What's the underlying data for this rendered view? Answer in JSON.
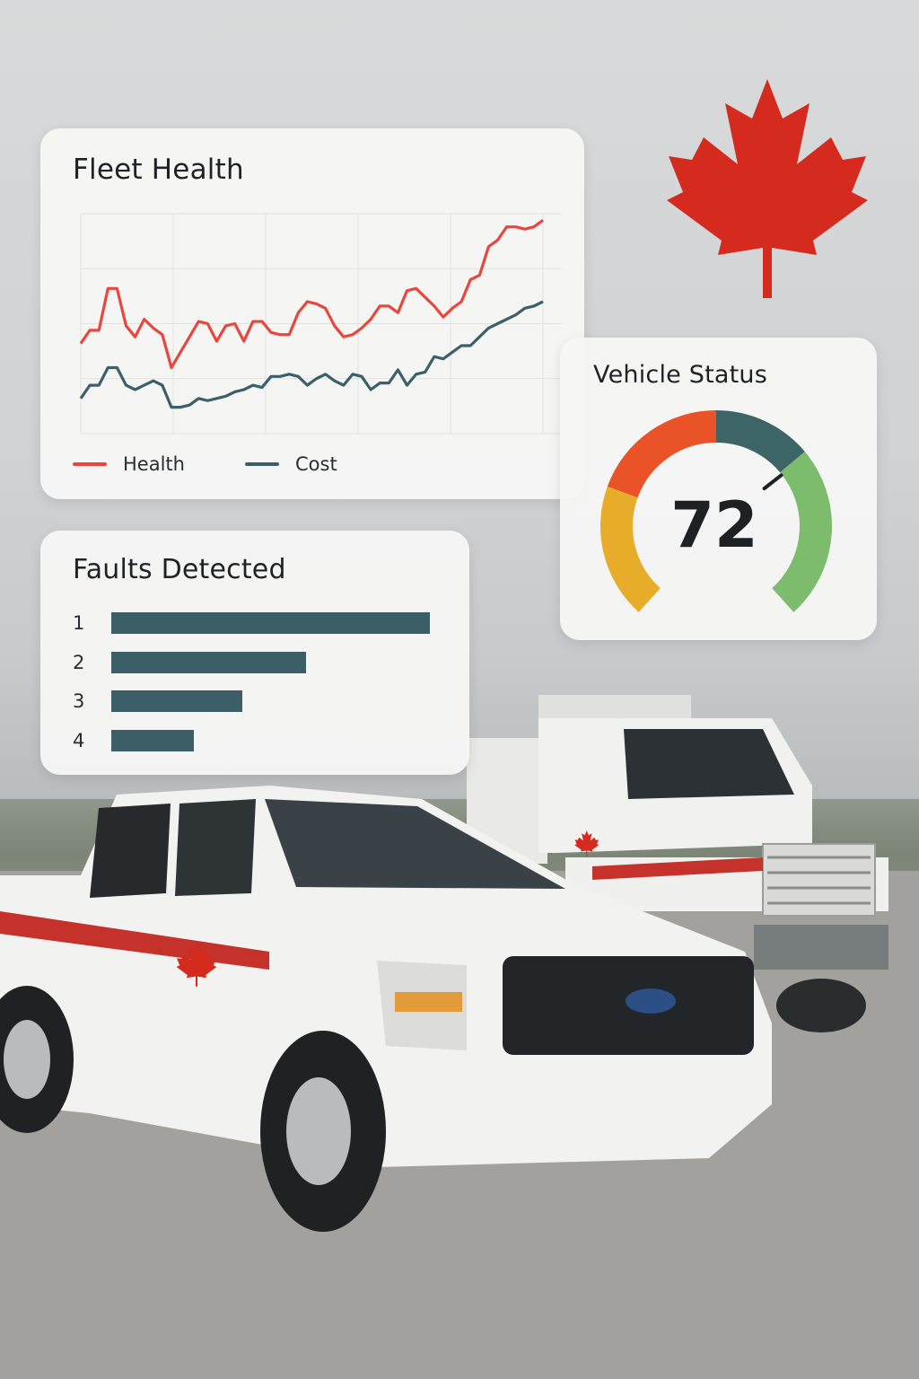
{
  "fleet_health": {
    "title": "Fleet Health",
    "legend": [
      {
        "name": "Health",
        "color": "#e8473f"
      },
      {
        "name": "Cost",
        "color": "#3b6069"
      }
    ]
  },
  "vehicle_status": {
    "title": "Vehicle Status",
    "value": "72",
    "segment_colors": [
      "#e7ad2a",
      "#ea5327",
      "#3d6467",
      "#7dbb6d"
    ]
  },
  "faults": {
    "title": "Faults Detected",
    "bar_color": "#3c5f67"
  },
  "brand": {
    "leaf_color": "#d52b1e"
  },
  "chart_data": [
    {
      "type": "line",
      "title": "Fleet Health",
      "xlabel": "",
      "ylabel": "",
      "x": [
        1,
        2,
        3,
        4,
        5,
        6,
        7,
        8,
        9,
        10,
        11,
        12,
        13,
        14,
        15,
        16,
        17,
        18,
        19,
        20,
        21,
        22,
        23,
        24,
        25,
        26,
        27,
        28,
        29,
        30,
        31,
        32,
        33,
        34,
        35,
        36,
        37,
        38,
        39,
        40,
        41,
        42,
        43,
        44,
        45,
        46,
        47,
        48,
        49,
        50,
        51,
        52
      ],
      "ylim": [
        0,
        100
      ],
      "grid": true,
      "legend": "bottom",
      "series": [
        {
          "name": "Health",
          "values": [
            41,
            47,
            47,
            66,
            66,
            49,
            44,
            52,
            48,
            45,
            30,
            37,
            44,
            51,
            50,
            42,
            49,
            50,
            42,
            51,
            51,
            46,
            45,
            45,
            55,
            60,
            59,
            57,
            49,
            44,
            45,
            48,
            52,
            58,
            58,
            55,
            65,
            66,
            62,
            58,
            53,
            57,
            60,
            70,
            72,
            85,
            88,
            94,
            94,
            93,
            94,
            97
          ]
        },
        {
          "name": "Cost",
          "values": [
            16,
            22,
            22,
            30,
            30,
            22,
            20,
            22,
            24,
            22,
            12,
            12,
            13,
            16,
            15,
            16,
            17,
            19,
            20,
            22,
            21,
            26,
            26,
            27,
            26,
            22,
            25,
            27,
            24,
            22,
            27,
            26,
            20,
            23,
            23,
            29,
            22,
            27,
            28,
            35,
            34,
            37,
            40,
            40,
            44,
            48,
            50,
            52,
            54,
            57,
            58,
            60
          ]
        }
      ]
    },
    {
      "type": "bar",
      "title": "Faults Detected",
      "orientation": "horizontal",
      "categories": [
        "1",
        "2",
        "3",
        "4"
      ],
      "values": [
        100,
        61,
        41,
        26
      ],
      "xlim": [
        0,
        100
      ]
    }
  ]
}
